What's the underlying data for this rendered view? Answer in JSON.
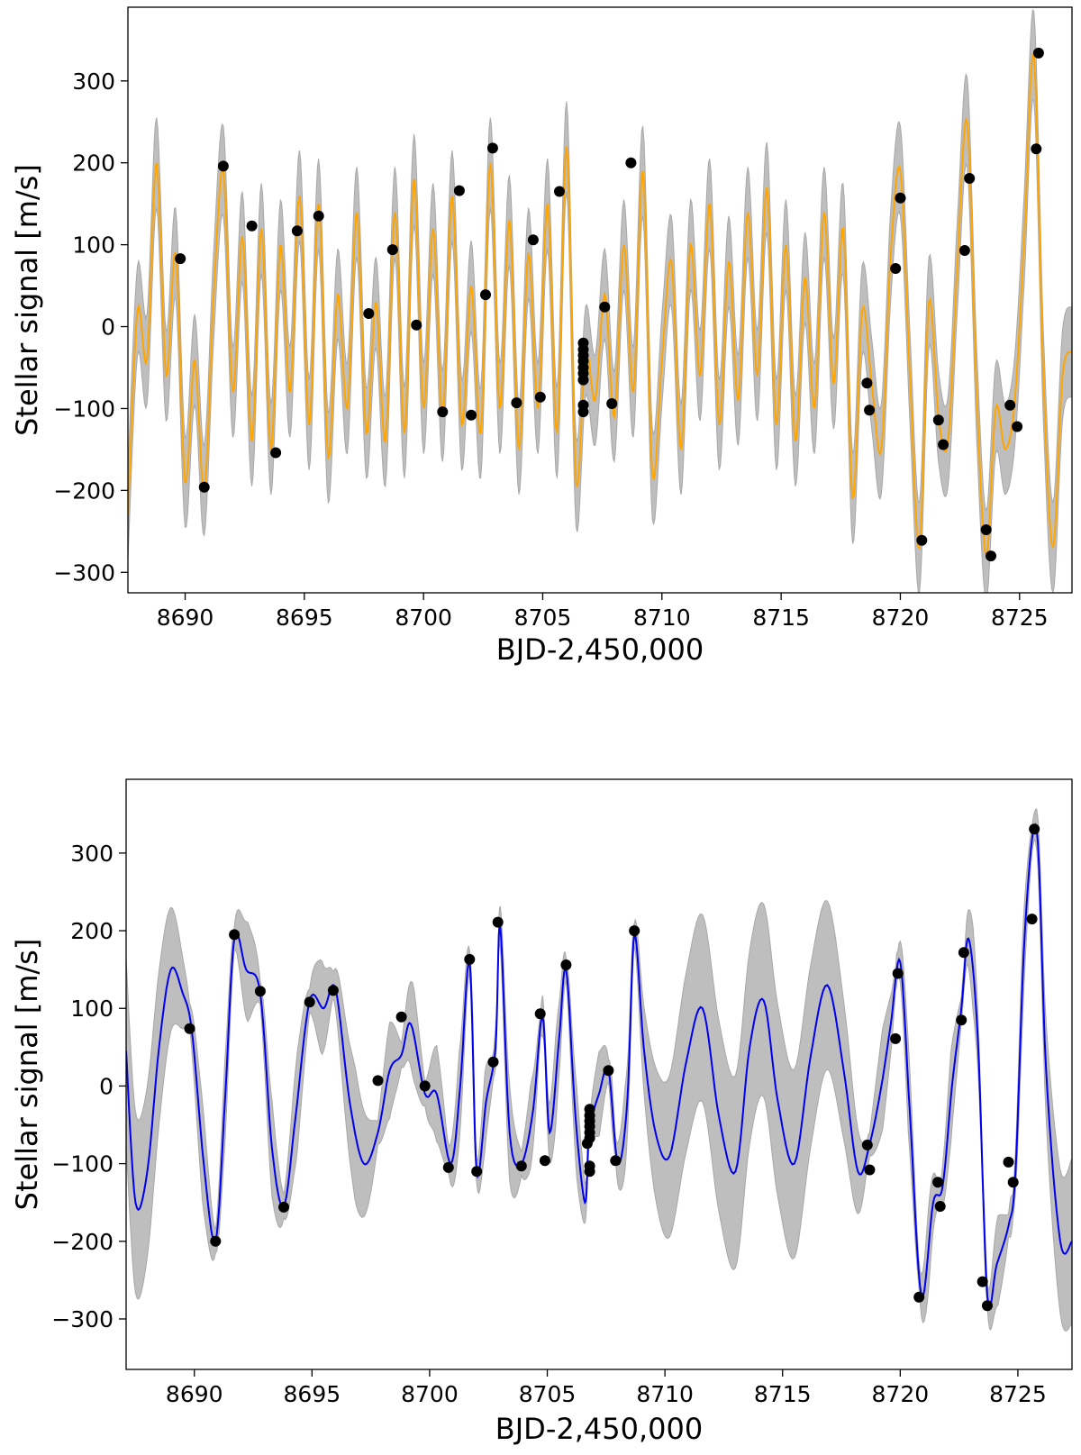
{
  "chart_data": [
    {
      "type": "line",
      "panel": "top",
      "title": "",
      "xlabel": "BJD-2,450,000",
      "ylabel": "Stellar signal [m/s]",
      "xlim": [
        8687.6,
        8727.2
      ],
      "ylim": [
        -325,
        390
      ],
      "x_ticks": [
        8690,
        8695,
        8700,
        8705,
        8710,
        8715,
        8720,
        8725
      ],
      "x_tick_labels": [
        "8690",
        "8695",
        "8700",
        "8705",
        "8710",
        "8715",
        "8720",
        "8725"
      ],
      "y_ticks": [
        -300,
        -200,
        -100,
        0,
        100,
        200,
        300
      ],
      "y_tick_labels": [
        "−300",
        "−200",
        "−100",
        "0",
        "100",
        "200",
        "300"
      ],
      "model_color": "#ffa500",
      "band_color": "#bebebe",
      "point_color": "#000000",
      "band_halfwidth": 55,
      "model_curve": {
        "x": [
          8687.6,
          8688.0,
          8688.4,
          8688.8,
          8689.2,
          8689.6,
          8690.0,
          8690.4,
          8690.8,
          8691.2,
          8691.6,
          8692.0,
          8692.4,
          8692.8,
          8693.2,
          8693.6,
          8694.0,
          8694.4,
          8694.8,
          8695.2,
          8695.6,
          8696.0,
          8696.4,
          8696.8,
          8697.2,
          8697.6,
          8698.0,
          8698.4,
          8698.8,
          8699.2,
          8699.6,
          8700.0,
          8700.4,
          8700.8,
          8701.2,
          8701.6,
          8702.0,
          8702.4,
          8702.8,
          8703.2,
          8703.6,
          8704.0,
          8704.4,
          8704.8,
          8705.2,
          8705.6,
          8706.0,
          8706.4,
          8706.8,
          8707.2,
          8707.6,
          8708.0,
          8708.4,
          8708.8,
          8709.2,
          8709.6,
          8710.0,
          8710.4,
          8710.8,
          8711.2,
          8711.6,
          8712.0,
          8712.4,
          8712.8,
          8713.2,
          8713.6,
          8714.0,
          8714.4,
          8714.8,
          8715.2,
          8715.6,
          8716.0,
          8716.4,
          8716.8,
          8717.2,
          8717.6,
          8718.0,
          8718.4,
          8718.8,
          8719.2,
          8719.6,
          8720.0,
          8720.4,
          8720.8,
          8721.2,
          8721.6,
          8722.0,
          8722.4,
          8722.8,
          8723.2,
          8723.6,
          8724.0,
          8724.4,
          8724.8,
          8725.2,
          8725.6,
          8726.0,
          8726.4,
          8726.8,
          8727.2
        ],
        "y": [
          -230,
          20,
          -40,
          200,
          -60,
          90,
          -190,
          -40,
          -200,
          40,
          190,
          -80,
          110,
          -140,
          120,
          -150,
          100,
          -80,
          160,
          -120,
          150,
          -160,
          40,
          -100,
          140,
          -130,
          30,
          -140,
          140,
          -130,
          180,
          -100,
          120,
          -110,
          160,
          -120,
          50,
          -130,
          200,
          -100,
          130,
          -150,
          90,
          -100,
          150,
          -130,
          220,
          -190,
          -30,
          -90,
          40,
          -110,
          100,
          -80,
          190,
          -180,
          -40,
          80,
          -150,
          100,
          -60,
          150,
          -120,
          80,
          -90,
          140,
          -60,
          170,
          -120,
          100,
          -140,
          60,
          -100,
          140,
          -70,
          120,
          -210,
          20,
          -70,
          -150,
          90,
          190,
          -60,
          -270,
          30,
          -110,
          -140,
          80,
          250,
          -80,
          -280,
          -100,
          -150,
          -90,
          110,
          330,
          -60,
          -270,
          -60,
          -30
        ]
      },
      "points": [
        [
          8689.8,
          83
        ],
        [
          8690.8,
          -196
        ],
        [
          8691.6,
          196
        ],
        [
          8692.8,
          123
        ],
        [
          8693.8,
          -154
        ],
        [
          8694.7,
          117
        ],
        [
          8695.6,
          135
        ],
        [
          8697.7,
          16
        ],
        [
          8698.7,
          94
        ],
        [
          8699.7,
          2
        ],
        [
          8700.8,
          -104
        ],
        [
          8701.5,
          166
        ],
        [
          8702.0,
          -108
        ],
        [
          8702.6,
          39
        ],
        [
          8702.9,
          218
        ],
        [
          8703.9,
          -93
        ],
        [
          8704.6,
          106
        ],
        [
          8704.9,
          -86
        ],
        [
          8705.7,
          165
        ],
        [
          8706.7,
          -20
        ],
        [
          8706.7,
          -28
        ],
        [
          8706.7,
          -35
        ],
        [
          8706.7,
          -42
        ],
        [
          8706.7,
          -50
        ],
        [
          8706.7,
          -57
        ],
        [
          8706.7,
          -65
        ],
        [
          8706.7,
          -96
        ],
        [
          8706.7,
          -104
        ],
        [
          8707.6,
          24
        ],
        [
          8707.9,
          -94
        ],
        [
          8708.7,
          200
        ],
        [
          8718.6,
          -69
        ],
        [
          8718.7,
          -102
        ],
        [
          8719.8,
          71
        ],
        [
          8720.0,
          157
        ],
        [
          8720.9,
          -261
        ],
        [
          8721.6,
          -114
        ],
        [
          8721.8,
          -144
        ],
        [
          8722.7,
          93
        ],
        [
          8722.9,
          181
        ],
        [
          8723.6,
          -248
        ],
        [
          8723.8,
          -280
        ],
        [
          8724.6,
          -96
        ],
        [
          8724.9,
          -122
        ],
        [
          8725.7,
          217
        ],
        [
          8725.8,
          334
        ]
      ]
    },
    {
      "type": "line",
      "panel": "bottom",
      "title": "",
      "xlabel": "BJD-2,450,000",
      "ylabel": "Stellar signal [m/s]",
      "xlim": [
        8687.1,
        8727.3
      ],
      "ylim": [
        -365,
        395
      ],
      "x_ticks": [
        8690,
        8695,
        8700,
        8705,
        8710,
        8715,
        8720,
        8725
      ],
      "x_tick_labels": [
        "8690",
        "8695",
        "8700",
        "8705",
        "8710",
        "8715",
        "8720",
        "8725"
      ],
      "y_ticks": [
        -300,
        -200,
        -100,
        0,
        100,
        200,
        300
      ],
      "y_tick_labels": [
        "−300",
        "−200",
        "−100",
        "0",
        "100",
        "200",
        "300"
      ],
      "model_color": "#0000ee",
      "band_color": "#bebebe",
      "point_color": "#000000",
      "model_curve": {
        "x": [
          8687.1,
          8687.5,
          8688.0,
          8688.5,
          8689.0,
          8689.5,
          8689.9,
          8690.4,
          8690.9,
          8691.3,
          8691.7,
          8692.2,
          8692.8,
          8693.3,
          8693.8,
          8694.3,
          8694.9,
          8695.5,
          8696.0,
          8696.6,
          8697.2,
          8697.8,
          8698.3,
          8698.8,
          8699.2,
          8699.8,
          8700.3,
          8700.9,
          8701.3,
          8701.7,
          8702.0,
          8702.4,
          8702.8,
          8703.0,
          8703.4,
          8703.9,
          8704.4,
          8704.8,
          8705.1,
          8705.5,
          8705.8,
          8706.2,
          8706.6,
          8706.75,
          8706.9,
          8707.2,
          8707.6,
          8708.0,
          8708.4,
          8708.7,
          8709.1,
          8709.6,
          8710.2,
          8710.9,
          8711.6,
          8712.3,
          8713.0,
          8713.6,
          8714.2,
          8714.8,
          8715.5,
          8716.2,
          8716.9,
          8717.6,
          8718.2,
          8718.7,
          8719.2,
          8719.6,
          8720.0,
          8720.4,
          8720.9,
          8721.4,
          8721.8,
          8722.2,
          8722.6,
          8722.9,
          8723.3,
          8723.7,
          8724.1,
          8724.6,
          8724.9,
          8725.3,
          8725.8,
          8726.2,
          8726.8,
          8727.3
        ],
        "y": [
          45,
          -150,
          -110,
          50,
          150,
          120,
          70,
          -100,
          -200,
          -20,
          190,
          150,
          120,
          -80,
          -155,
          -40,
          110,
          100,
          125,
          -20,
          -100,
          -60,
          20,
          40,
          80,
          -10,
          -10,
          -100,
          0,
          160,
          -110,
          -20,
          50,
          205,
          -60,
          -100,
          -30,
          90,
          -60,
          60,
          150,
          -40,
          -150,
          -70,
          -40,
          -10,
          20,
          -100,
          -20,
          195,
          50,
          -60,
          -90,
          30,
          100,
          -40,
          -110,
          50,
          110,
          -20,
          -100,
          40,
          130,
          20,
          -110,
          -75,
          0,
          80,
          160,
          -30,
          -270,
          -150,
          -130,
          0,
          100,
          190,
          60,
          -270,
          -230,
          -180,
          -110,
          200,
          330,
          20,
          -200,
          -200
        ]
      },
      "points": [
        [
          8689.8,
          74
        ],
        [
          8690.9,
          -200
        ],
        [
          8691.7,
          195
        ],
        [
          8692.8,
          122
        ],
        [
          8693.8,
          -156
        ],
        [
          8694.9,
          108
        ],
        [
          8695.9,
          123
        ],
        [
          8697.8,
          7
        ],
        [
          8698.8,
          89
        ],
        [
          8699.8,
          0
        ],
        [
          8700.8,
          -105
        ],
        [
          8701.7,
          163
        ],
        [
          8702.0,
          -110
        ],
        [
          8702.7,
          31
        ],
        [
          8702.9,
          211
        ],
        [
          8703.9,
          -103
        ],
        [
          8704.7,
          93
        ],
        [
          8704.9,
          -96
        ],
        [
          8705.8,
          156
        ],
        [
          8706.8,
          -30
        ],
        [
          8706.8,
          -38
        ],
        [
          8706.8,
          -45
        ],
        [
          8706.8,
          -52
        ],
        [
          8706.8,
          -60
        ],
        [
          8706.8,
          -67
        ],
        [
          8706.7,
          -74
        ],
        [
          8706.8,
          -103
        ],
        [
          8706.8,
          -110
        ],
        [
          8707.6,
          20
        ],
        [
          8707.9,
          -96
        ],
        [
          8708.7,
          200
        ],
        [
          8718.6,
          -76
        ],
        [
          8718.7,
          -108
        ],
        [
          8719.8,
          61
        ],
        [
          8719.9,
          145
        ],
        [
          8720.8,
          -272
        ],
        [
          8721.6,
          -124
        ],
        [
          8721.7,
          -155
        ],
        [
          8722.6,
          85
        ],
        [
          8722.7,
          172
        ],
        [
          8723.5,
          -252
        ],
        [
          8723.7,
          -283
        ],
        [
          8724.6,
          -98
        ],
        [
          8724.8,
          -124
        ],
        [
          8725.6,
          215
        ],
        [
          8725.7,
          331
        ]
      ]
    }
  ]
}
